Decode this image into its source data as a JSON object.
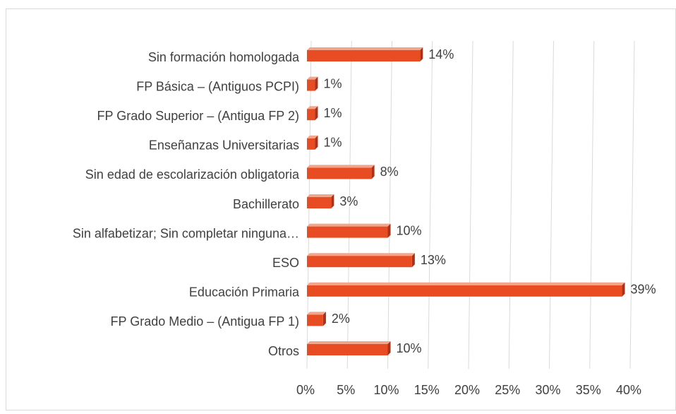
{
  "chart_data": {
    "type": "bar",
    "orientation": "horizontal",
    "categories": [
      "Sin formación homologada",
      "FP Básica – (Antiguos PCPI)",
      "FP Grado Superior – (Antigua FP 2)",
      "Enseñanzas Universitarias",
      "Sin edad de escolarización obligatoria",
      "Bachillerato",
      "Sin alfabetizar; Sin completar ninguna…",
      "ESO",
      "Educación Primaria",
      "FP Grado Medio – (Antigua FP 1)",
      "Otros"
    ],
    "values": [
      14,
      1,
      1,
      1,
      8,
      3,
      10,
      13,
      39,
      2,
      10
    ],
    "value_labels": [
      "14%",
      "1%",
      "1%",
      "1%",
      "8%",
      "3%",
      "10%",
      "13%",
      "39%",
      "2%",
      "10%"
    ],
    "color": "#e84c22",
    "xlim": [
      0,
      40
    ],
    "xticks": [
      {
        "value": 0,
        "label": "0%"
      },
      {
        "value": 5,
        "label": "5%"
      },
      {
        "value": 10,
        "label": "10%"
      },
      {
        "value": 15,
        "label": "15%"
      },
      {
        "value": 20,
        "label": "20%"
      },
      {
        "value": 25,
        "label": "25%"
      },
      {
        "value": 30,
        "label": "30%"
      },
      {
        "value": 35,
        "label": "35%"
      },
      {
        "value": 40,
        "label": "40%"
      }
    ],
    "grid": true
  }
}
